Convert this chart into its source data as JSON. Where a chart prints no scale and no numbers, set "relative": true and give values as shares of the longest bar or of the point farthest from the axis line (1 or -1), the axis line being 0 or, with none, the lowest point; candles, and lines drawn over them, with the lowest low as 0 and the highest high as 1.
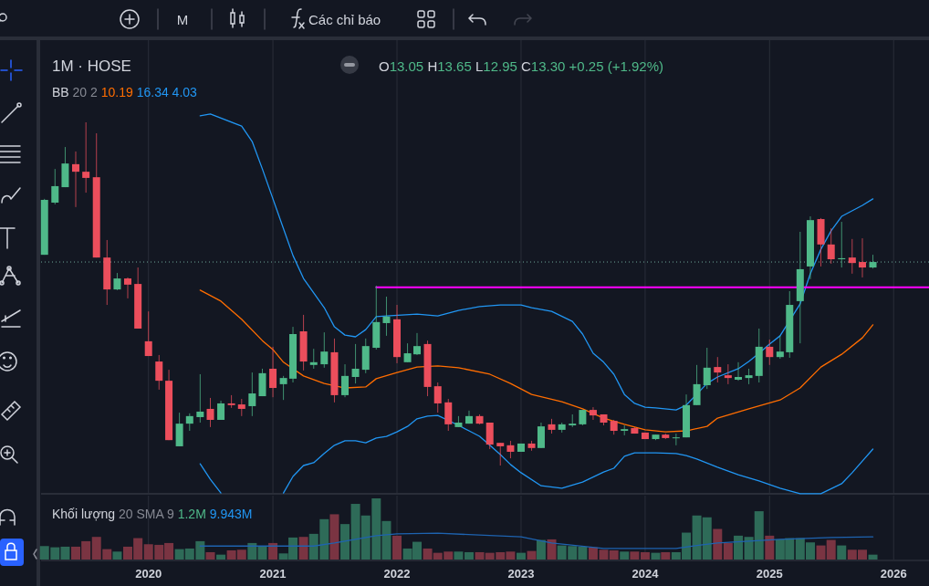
{
  "chart_data": [
    {
      "type": "candlestick",
      "title": "1M · HOSE",
      "relative": true,
      "tick_labels": false,
      "grid": "x",
      "xlim": [
        "2019-02-19",
        "2026-04-15"
      ],
      "xticks": [
        "2020",
        "2021",
        "2022",
        "2023",
        "2024",
        "2025",
        "2026"
      ],
      "annotations": [
        "M",
        "Các chỉ báo",
        "O13.05 H13.65 L12.95 C13.30 +0.25 (+1.92%)",
        "BB 20 2 10.19 16.34 4.03"
      ],
      "x": [
        "2019-03",
        "2019-04",
        "2019-05",
        "2019-06",
        "2019-07",
        "2019-08",
        "2019-09",
        "2019-10",
        "2019-11",
        "2019-12",
        "2020-01",
        "2020-02",
        "2020-03",
        "2020-04",
        "2020-05",
        "2020-06",
        "2020-07",
        "2020-08",
        "2020-09",
        "2020-10",
        "2020-11",
        "2020-12",
        "2021-01",
        "2021-02",
        "2021-03",
        "2021-04",
        "2021-05",
        "2021-06",
        "2021-07",
        "2021-08",
        "2021-09",
        "2021-10",
        "2021-11",
        "2021-12",
        "2022-01",
        "2022-02",
        "2022-03",
        "2022-04",
        "2022-05",
        "2022-06",
        "2022-07",
        "2022-08",
        "2022-09",
        "2022-10",
        "2022-11",
        "2022-12",
        "2023-01",
        "2023-02",
        "2023-03",
        "2023-04",
        "2023-05",
        "2023-06",
        "2023-07",
        "2023-08",
        "2023-09",
        "2023-10",
        "2023-11",
        "2023-12",
        "2024-01",
        "2024-02",
        "2024-03",
        "2024-04",
        "2024-05",
        "2024-06",
        "2024-07",
        "2024-08",
        "2024-09",
        "2024-10",
        "2024-11",
        "2024-12",
        "2025-01",
        "2025-02",
        "2025-03",
        "2025-04",
        "2025-05",
        "2025-06",
        "2025-07",
        "2025-08",
        "2025-09",
        "2025-10",
        "2025-11"
      ],
      "ohlc": [
        [
          0.614,
          0.777,
          0.614,
          0.774
        ],
        [
          0.766,
          0.864,
          0.761,
          0.814
        ],
        [
          0.811,
          0.928,
          0.811,
          0.88
        ],
        [
          0.878,
          0.915,
          0.753,
          0.856
        ],
        [
          0.856,
          1,
          0.795,
          0.838
        ],
        [
          0.84,
          0.968,
          0.606,
          0.606
        ],
        [
          0.606,
          0.657,
          0.468,
          0.513
        ],
        [
          0.513,
          0.561,
          0.511,
          0.545
        ],
        [
          0.545,
          0.548,
          0.487,
          0.527
        ],
        [
          0.529,
          0.577,
          0.399,
          0.399
        ],
        [
          0.362,
          0.449,
          0.319,
          0.319
        ],
        [
          0.303,
          0.322,
          0.221,
          0.247
        ],
        [
          0.247,
          0.279,
          0.074,
          0.074
        ],
        [
          0.056,
          0.154,
          0.056,
          0.122
        ],
        [
          0.122,
          0.152,
          0.101,
          0.144
        ],
        [
          0.141,
          0.266,
          0.125,
          0.157
        ],
        [
          0.165,
          0.197,
          0.112,
          0.133
        ],
        [
          0.133,
          0.189,
          0.133,
          0.181
        ],
        [
          0.181,
          0.205,
          0.168,
          0.176
        ],
        [
          0.178,
          0.194,
          0.144,
          0.165
        ],
        [
          0.173,
          0.271,
          0.144,
          0.21
        ],
        [
          0.202,
          0.282,
          0.202,
          0.269
        ],
        [
          0.282,
          0.346,
          0.199,
          0.226
        ],
        [
          0.237,
          0.261,
          0.191,
          0.255
        ],
        [
          0.253,
          0.404,
          0.242,
          0.383
        ],
        [
          0.391,
          0.439,
          0.277,
          0.303
        ],
        [
          0.293,
          0.34,
          0.282,
          0.301
        ],
        [
          0.295,
          0.388,
          0.285,
          0.332
        ],
        [
          0.33,
          0.37,
          0.184,
          0.205
        ],
        [
          0.205,
          0.295,
          0.199,
          0.261
        ],
        [
          0.258,
          0.354,
          0.239,
          0.282
        ],
        [
          0.279,
          0.37,
          0.269,
          0.348
        ],
        [
          0.343,
          0.524,
          0.338,
          0.418
        ],
        [
          0.415,
          0.492,
          0.378,
          0.434
        ],
        [
          0.426,
          0.468,
          0.298,
          0.316
        ],
        [
          0.301,
          0.356,
          0.301,
          0.327
        ],
        [
          0.324,
          0.386,
          0.322,
          0.348
        ],
        [
          0.354,
          0.364,
          0.202,
          0.229
        ],
        [
          0.231,
          0.242,
          0.154,
          0.181
        ],
        [
          0.184,
          0.194,
          0.101,
          0.12
        ],
        [
          0.112,
          0.144,
          0.112,
          0.125
        ],
        [
          0.122,
          0.16,
          0.122,
          0.144
        ],
        [
          0.144,
          0.149,
          0.12,
          0.122
        ],
        [
          0.125,
          0.125,
          0.048,
          0.061
        ],
        [
          0.066,
          0.066,
          0,
          0.056
        ],
        [
          0.059,
          0.072,
          0.021,
          0.04
        ],
        [
          0.04,
          0.064,
          0.04,
          0.064
        ],
        [
          0.064,
          0.072,
          0.043,
          0.051
        ],
        [
          0.051,
          0.125,
          0.051,
          0.114
        ],
        [
          0.12,
          0.136,
          0.093,
          0.104
        ],
        [
          0.104,
          0.125,
          0.096,
          0.12
        ],
        [
          0.117,
          0.149,
          0.112,
          0.122
        ],
        [
          0.12,
          0.162,
          0.117,
          0.162
        ],
        [
          0.162,
          0.17,
          0.133,
          0.146
        ],
        [
          0.149,
          0.149,
          0.117,
          0.125
        ],
        [
          0.13,
          0.133,
          0.09,
          0.101
        ],
        [
          0.101,
          0.117,
          0.088,
          0.106
        ],
        [
          0.109,
          0.112,
          0.093,
          0.093
        ],
        [
          0.096,
          0.096,
          0.077,
          0.077
        ],
        [
          0.077,
          0.09,
          0.074,
          0.09
        ],
        [
          0.09,
          0.093,
          0.077,
          0.08
        ],
        [
          0.08,
          0.093,
          0.059,
          0.082
        ],
        [
          0.082,
          0.207,
          0.082,
          0.176
        ],
        [
          0.176,
          0.293,
          0.176,
          0.237
        ],
        [
          0.234,
          0.343,
          0.223,
          0.285
        ],
        [
          0.287,
          0.316,
          0.242,
          0.271
        ],
        [
          0.263,
          0.295,
          0.237,
          0.255
        ],
        [
          0.25,
          0.301,
          0.247,
          0.258
        ],
        [
          0.255,
          0.282,
          0.237,
          0.263
        ],
        [
          0.261,
          0.399,
          0.242,
          0.346
        ],
        [
          0.346,
          0.367,
          0.293,
          0.316
        ],
        [
          0.316,
          0.378,
          0.311,
          0.332
        ],
        [
          0.33,
          0.508,
          0.314,
          0.468
        ],
        [
          0.479,
          0.681,
          0.356,
          0.572
        ],
        [
          0.58,
          0.726,
          0.543,
          0.715
        ],
        [
          0.718,
          0.721,
          0.58,
          0.644
        ],
        [
          0.644,
          0.691,
          0.588,
          0.601
        ],
        [
          0.601,
          0.71,
          0.577,
          0.604
        ],
        [
          0.606,
          0.66,
          0.559,
          0.59
        ],
        [
          0.593,
          0.662,
          0.548,
          0.577
        ],
        [
          0.577,
          0.614,
          0.574,
          0.593
        ]
      ],
      "series": [
        {
          "type": "line",
          "color": "#2196f3",
          "x": [
            "2020-06",
            "2020-07",
            "2020-10",
            "2020-11",
            "2020-12",
            "2021-03",
            "2021-04",
            "2021-06",
            "2021-07",
            "2021-08",
            "2021-09",
            "2021-10",
            "2021-11",
            "2021-12",
            "2022-03",
            "2022-05",
            "2022-07",
            "2022-09",
            "2022-11",
            "2023-01",
            "2023-02",
            "2023-04",
            "2023-06",
            "2023-07",
            "2023-08",
            "2023-09",
            "2023-10",
            "2023-11",
            "2023-12",
            "2024-01",
            "2024-02",
            "2024-04",
            "2024-05",
            "2024-07",
            "2024-08",
            "2024-10",
            "2024-11",
            "2024-12",
            "2025-01",
            "2025-02",
            "2025-04",
            "2025-05",
            "2025-06",
            "2025-07",
            "2025-08",
            "2025-10",
            "2025-11"
          ],
          "values": [
            1.019,
            1.024,
            0.989,
            0.944,
            0.864,
            0.612,
            0.545,
            0.46,
            0.404,
            0.38,
            0.375,
            0.396,
            0.434,
            0.436,
            0.441,
            0.436,
            0.452,
            0.463,
            0.468,
            0.468,
            0.46,
            0.449,
            0.42,
            0.383,
            0.327,
            0.301,
            0.266,
            0.207,
            0.181,
            0.17,
            0.168,
            0.162,
            0.176,
            0.239,
            0.258,
            0.282,
            0.303,
            0.327,
            0.354,
            0.378,
            0.471,
            0.559,
            0.63,
            0.684,
            0.726,
            0.758,
            0.777
          ]
        },
        {
          "type": "line",
          "color": "#ff6d00",
          "x": [
            "2020-06",
            "2020-08",
            "2020-10",
            "2020-12",
            "2021-01",
            "2021-02",
            "2021-04",
            "2021-06",
            "2021-08",
            "2021-10",
            "2021-11",
            "2022-01",
            "2022-03",
            "2022-05",
            "2022-07",
            "2022-10",
            "2022-12",
            "2023-02",
            "2023-05",
            "2023-07",
            "2023-09",
            "2023-11",
            "2024-01",
            "2024-03",
            "2024-05",
            "2024-07",
            "2024-08",
            "2024-11",
            "2025-02",
            "2025-04",
            "2025-06",
            "2025-08",
            "2025-10",
            "2025-11"
          ],
          "values": [
            0.511,
            0.479,
            0.426,
            0.364,
            0.338,
            0.301,
            0.261,
            0.239,
            0.226,
            0.229,
            0.253,
            0.271,
            0.287,
            0.29,
            0.285,
            0.266,
            0.239,
            0.207,
            0.186,
            0.165,
            0.138,
            0.12,
            0.104,
            0.098,
            0.101,
            0.114,
            0.138,
            0.165,
            0.191,
            0.226,
            0.287,
            0.324,
            0.372,
            0.41
          ]
        },
        {
          "type": "line",
          "color": "#2196f3",
          "x": [
            "2020-06",
            "2020-07",
            "2020-08",
            "2020-09",
            "2021-02",
            "2021-03",
            "2021-04",
            "2021-05",
            "2021-06",
            "2021-07",
            "2021-08",
            "2021-09",
            "2021-10",
            "2021-11",
            "2021-12",
            "2022-01",
            "2022-02",
            "2022-03",
            "2022-04",
            "2022-05",
            "2022-07",
            "2022-08",
            "2022-09",
            "2022-10",
            "2022-11",
            "2022-12",
            "2023-01",
            "2023-03",
            "2023-05",
            "2023-07",
            "2023-09",
            "2023-10",
            "2023-11",
            "2023-12",
            "2024-02",
            "2024-04",
            "2024-05",
            "2024-06",
            "2024-08",
            "2024-10",
            "2024-12",
            "2025-02",
            "2025-04",
            "2025-06",
            "2025-08",
            "2025-09",
            "2025-10",
            "2025-11"
          ],
          "values": [
            0.005,
            -0.04,
            -0.08,
            null,
            -0.08,
            -0.032,
            0.0,
            0.008,
            0.035,
            0.059,
            0.072,
            0.072,
            0.066,
            0.08,
            0.085,
            0.098,
            0.114,
            0.136,
            0.144,
            0.146,
            0.117,
            0.101,
            0.085,
            0.059,
            0.032,
            0.003,
            -0.021,
            -0.059,
            -0.066,
            -0.048,
            -0.019,
            -0.008,
            0.027,
            0.037,
            0.037,
            0.035,
            0.029,
            0.019,
            -0.005,
            -0.027,
            -0.045,
            -0.066,
            -0.082,
            -0.082,
            -0.053,
            -0.021,
            0.013,
            0.048
          ]
        },
        {
          "type": "line",
          "color": "#ff00ff",
          "x": [
            "2021-11",
            "2026-04-15"
          ],
          "values": [
            0.519,
            0.519
          ]
        }
      ],
      "ref_lines": [
        {
          "axis": "y",
          "value": 0.593,
          "color": "#6fa89a",
          "line_style": "dotted"
        }
      ]
    },
    {
      "type": "bar",
      "relative": true,
      "tick_labels": "x",
      "grid": "x",
      "xlim": [
        "2019-02-19",
        "2026-04-15"
      ],
      "xticks": [
        "2020",
        "2021",
        "2022",
        "2023",
        "2024",
        "2025",
        "2026"
      ],
      "annotations": [
        "Khối lượng 20 SMA 9 1.2M 9.943M"
      ],
      "x": [
        "2019-03",
        "2019-04",
        "2019-05",
        "2019-06",
        "2019-07",
        "2019-08",
        "2019-09",
        "2019-10",
        "2019-11",
        "2019-12",
        "2020-01",
        "2020-02",
        "2020-03",
        "2020-04",
        "2020-05",
        "2020-06",
        "2020-07",
        "2020-08",
        "2020-09",
        "2020-10",
        "2020-11",
        "2020-12",
        "2021-01",
        "2021-02",
        "2021-03",
        "2021-04",
        "2021-05",
        "2021-06",
        "2021-07",
        "2021-08",
        "2021-09",
        "2021-10",
        "2021-11",
        "2021-12",
        "2022-01",
        "2022-02",
        "2022-03",
        "2022-04",
        "2022-05",
        "2022-06",
        "2022-07",
        "2022-08",
        "2022-09",
        "2022-10",
        "2022-11",
        "2022-12",
        "2023-01",
        "2023-02",
        "2023-03",
        "2023-04",
        "2023-05",
        "2023-06",
        "2023-07",
        "2023-08",
        "2023-09",
        "2023-10",
        "2023-11",
        "2023-12",
        "2024-01",
        "2024-02",
        "2024-03",
        "2024-04",
        "2024-05",
        "2024-06",
        "2024-07",
        "2024-08",
        "2024-09",
        "2024-10",
        "2024-11",
        "2024-12",
        "2025-01",
        "2025-02",
        "2025-03",
        "2025-04",
        "2025-05",
        "2025-06",
        "2025-07",
        "2025-08",
        "2025-09",
        "2025-10",
        "2025-11"
      ],
      "values": [
        0.22,
        0.2,
        0.21,
        0.21,
        0.3,
        0.37,
        0.17,
        0.13,
        0.21,
        0.35,
        0.25,
        0.24,
        0.27,
        0.17,
        0.18,
        0.3,
        0.12,
        0.08,
        0.15,
        0.16,
        0.27,
        0.21,
        0.27,
        0.1,
        0.36,
        0.37,
        0.42,
        0.66,
        0.74,
        0.58,
        0.91,
        0.72,
        1,
        0.63,
        0.39,
        0.18,
        0.29,
        0.18,
        0.11,
        0.13,
        0.13,
        0.12,
        0.12,
        0.11,
        0.12,
        0.13,
        0.11,
        0.14,
        0.32,
        0.33,
        0.23,
        0.22,
        0.21,
        0.2,
        0.16,
        0.15,
        0.13,
        0.13,
        0.12,
        0.11,
        0.12,
        0.12,
        0.44,
        0.72,
        0.69,
        0.5,
        0.27,
        0.39,
        0.37,
        0.79,
        0.39,
        0.33,
        0.35,
        0.35,
        0.28,
        0.23,
        0.32,
        0.23,
        0.16,
        0.16,
        0.08
      ],
      "colors": [
        "#2e6b58",
        "#2e6b58",
        "#2e6b58",
        "#7a3442",
        "#7a3442",
        "#7a3442",
        "#7a3442",
        "#2e6b58",
        "#7a3442",
        "#7a3442",
        "#7a3442",
        "#7a3442",
        "#7a3442",
        "#2e6b58",
        "#2e6b58",
        "#2e6b58",
        "#7a3442",
        "#2e6b58",
        "#7a3442",
        "#7a3442",
        "#2e6b58",
        "#2e6b58",
        "#7a3442",
        "#2e6b58",
        "#2e6b58",
        "#7a3442",
        "#2e6b58",
        "#2e6b58",
        "#7a3442",
        "#2e6b58",
        "#2e6b58",
        "#2e6b58",
        "#2e6b58",
        "#2e6b58",
        "#7a3442",
        "#2e6b58",
        "#2e6b58",
        "#7a3442",
        "#7a3442",
        "#7a3442",
        "#2e6b58",
        "#2e6b58",
        "#7a3442",
        "#7a3442",
        "#7a3442",
        "#7a3442",
        "#2e6b58",
        "#7a3442",
        "#2e6b58",
        "#7a3442",
        "#2e6b58",
        "#2e6b58",
        "#2e6b58",
        "#7a3442",
        "#7a3442",
        "#7a3442",
        "#2e6b58",
        "#7a3442",
        "#7a3442",
        "#2e6b58",
        "#7a3442",
        "#2e6b58",
        "#2e6b58",
        "#2e6b58",
        "#2e6b58",
        "#7a3442",
        "#7a3442",
        "#2e6b58",
        "#2e6b58",
        "#2e6b58",
        "#7a3442",
        "#2e6b58",
        "#2e6b58",
        "#2e6b58",
        "#2e6b58",
        "#7a3442",
        "#7a3442",
        "#2e6b58",
        "#7a3442",
        "#7a3442",
        "#2e6b58"
      ],
      "series": [
        {
          "type": "line",
          "color": "#1e63b0",
          "x": [
            "2020-06",
            "2021-05",
            "2021-07",
            "2021-11",
            "2022-01",
            "2022-05",
            "2023-01",
            "2023-04",
            "2023-09",
            "2024-04",
            "2024-06",
            "2024-08",
            "2025-02",
            "2025-07",
            "2025-11"
          ],
          "values": [
            0.22,
            0.22,
            0.27,
            0.39,
            0.42,
            0.43,
            0.37,
            0.27,
            0.18,
            0.18,
            0.23,
            0.27,
            0.33,
            0.36,
            0.37
          ]
        }
      ]
    }
  ]
}
